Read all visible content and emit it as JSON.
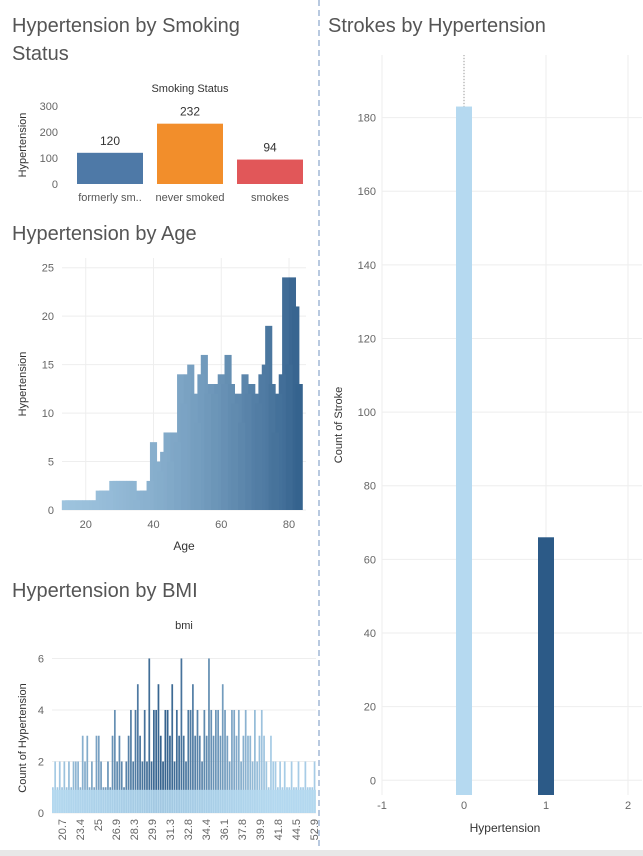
{
  "titles": {
    "smoking": "Hypertension by Smoking Status",
    "age": "Hypertension by Age",
    "bmi": "Hypertension by BMI",
    "strokes": "Strokes by Hypertension"
  },
  "colors": {
    "formerly": "#4e79a7",
    "never": "#f28e2b",
    "smokes": "#e15759",
    "light": "#b5d9f0",
    "dark": "#2c5a87",
    "axis": "#666666",
    "grid": "#eeeeee"
  },
  "chart_data": [
    {
      "id": "smoking",
      "type": "bar",
      "title": "Smoking Status",
      "categories": [
        "formerly sm..",
        "never smoked",
        "smokes"
      ],
      "values": [
        120,
        232,
        94
      ],
      "ylabel": "Hypertension",
      "ylim": [
        0,
        300
      ],
      "yticks": [
        0,
        100,
        200,
        300
      ]
    },
    {
      "id": "age",
      "type": "bar",
      "title": "",
      "xlabel": "Age",
      "ylabel": "Hypertension",
      "xlim": [
        13,
        85
      ],
      "ylim": [
        0,
        26
      ],
      "xticks": [
        20,
        40,
        60,
        80
      ],
      "yticks": [
        0,
        5,
        10,
        15,
        20,
        25
      ],
      "x": [
        14,
        15,
        16,
        17,
        18,
        19,
        20,
        21,
        22,
        23,
        24,
        25,
        26,
        27,
        28,
        29,
        30,
        31,
        32,
        33,
        34,
        35,
        36,
        37,
        38,
        39,
        40,
        41,
        42,
        43,
        44,
        45,
        46,
        47,
        48,
        49,
        50,
        51,
        52,
        53,
        54,
        55,
        56,
        57,
        58,
        59,
        60,
        61,
        62,
        63,
        64,
        65,
        66,
        67,
        68,
        69,
        70,
        71,
        72,
        73,
        74,
        75,
        76,
        77,
        78,
        79,
        80,
        81,
        82,
        83
      ],
      "values": [
        1,
        1,
        1,
        1,
        1,
        1,
        1,
        1,
        1,
        1,
        2,
        2,
        2,
        2,
        3,
        3,
        3,
        3,
        3,
        3,
        3,
        1,
        2,
        2,
        2,
        3,
        7,
        5,
        4,
        6,
        8,
        5,
        8,
        7,
        14,
        11,
        14,
        15,
        12,
        9,
        14,
        16,
        12,
        13,
        12,
        13,
        14,
        13,
        16,
        13,
        11,
        12,
        9,
        14,
        12,
        13,
        12,
        11,
        14,
        15,
        19,
        13,
        8,
        12,
        14,
        24,
        15,
        24,
        21,
        13
      ]
    },
    {
      "id": "bmi",
      "type": "bar",
      "title": "bmi",
      "ylabel": "Count of Hypertension",
      "ylim": [
        0,
        6.6
      ],
      "yticks": [
        0,
        2,
        4,
        6
      ],
      "xticks": [
        "20.7",
        "23.4",
        "25",
        "26.9",
        "28.3",
        "29.9",
        "31.3",
        "32.8",
        "34.4",
        "36.1",
        "37.8",
        "39.9",
        "41.8",
        "44.5",
        "52.9"
      ],
      "values": [
        1,
        2,
        1,
        2,
        1,
        2,
        1,
        2,
        1,
        2,
        2,
        2,
        1,
        3,
        2,
        3,
        1,
        2,
        1,
        3,
        3,
        2,
        1,
        1,
        2,
        1,
        3,
        4,
        2,
        3,
        2,
        1,
        2,
        3,
        4,
        2,
        4,
        5,
        3,
        2,
        4,
        2,
        6,
        2,
        4,
        4,
        5,
        3,
        2,
        4,
        4,
        3,
        5,
        2,
        4,
        3,
        6,
        3,
        2,
        4,
        4,
        5,
        3,
        4,
        3,
        2,
        4,
        3,
        6,
        4,
        3,
        4,
        4,
        3,
        5,
        4,
        3,
        2,
        4,
        4,
        3,
        4,
        2,
        3,
        4,
        3,
        3,
        2,
        4,
        2,
        3,
        4,
        3,
        2,
        1,
        3,
        2,
        2,
        1,
        2,
        1,
        2,
        1,
        1,
        2,
        1,
        1,
        2,
        1,
        1,
        2,
        1,
        1,
        1,
        2
      ]
    },
    {
      "id": "strokes",
      "type": "bar",
      "title": "",
      "xlabel": "Hypertension",
      "ylabel": "Count of Stroke",
      "categories": [
        0,
        1
      ],
      "values": [
        183,
        66
      ],
      "xlim": [
        -1,
        2
      ],
      "xticks": [
        -1,
        0,
        1,
        2
      ],
      "ylim": [
        -4,
        197
      ],
      "yticks": [
        0,
        20,
        40,
        60,
        80,
        100,
        120,
        140,
        160,
        180
      ]
    }
  ]
}
